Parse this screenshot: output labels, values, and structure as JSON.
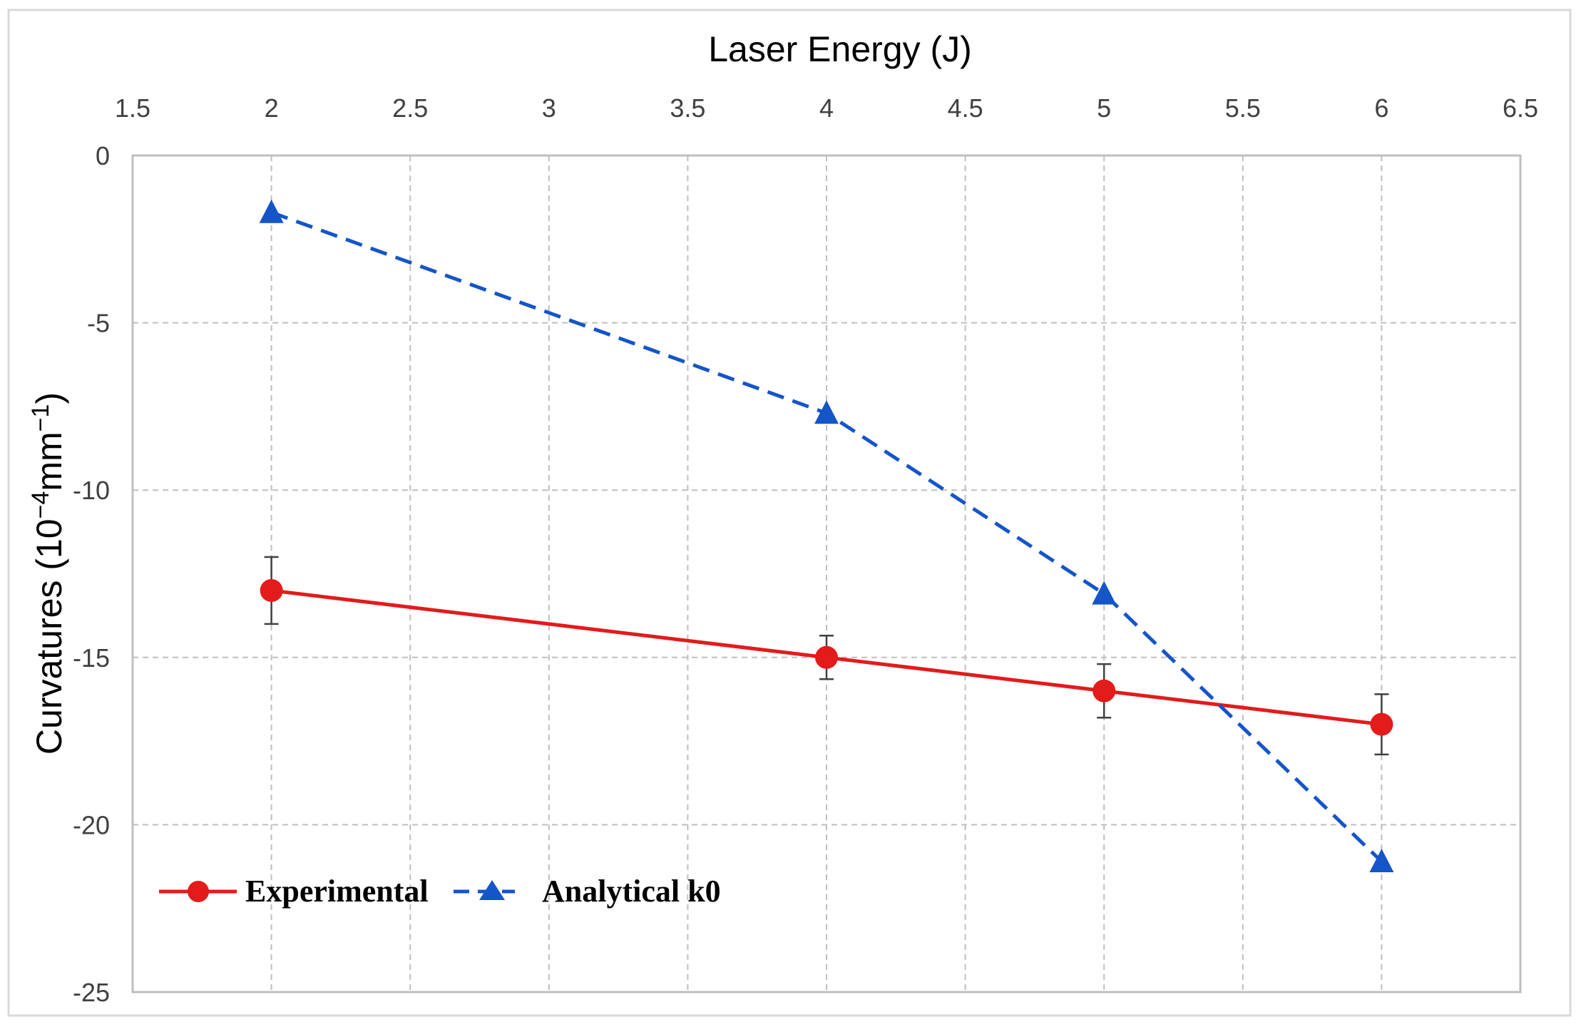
{
  "chart_data": {
    "type": "line",
    "title": "",
    "xlabel": "Laser Energy (J)",
    "ylabel_main": "Curvatures (10",
    "ylabel_exp": "−4",
    "ylabel_mid": "mm",
    "ylabel_exp2": "−1",
    "ylabel_end": ")",
    "xlim": [
      1.5,
      6.5
    ],
    "ylim": [
      -25,
      0
    ],
    "x_ticks": [
      1.5,
      2,
      2.5,
      3,
      3.5,
      4,
      4.5,
      5,
      5.5,
      6,
      6.5
    ],
    "x_tick_labels": [
      "1.5",
      "2",
      "2.5",
      "3",
      "3.5",
      "4",
      "4.5",
      "5",
      "5.5",
      "6",
      "6.5"
    ],
    "y_ticks": [
      0,
      -5,
      -10,
      -15,
      -20,
      -25
    ],
    "y_tick_labels": [
      "0",
      "-5",
      "-10",
      "-15",
      "-20",
      "-25"
    ],
    "x_axis_position": "top",
    "grid": true,
    "legend_position": "bottom-left",
    "series": [
      {
        "name": "Experimental",
        "color": "#E31B1B",
        "line_style": "solid",
        "marker": "circle",
        "x": [
          2,
          4,
          5,
          6
        ],
        "y": [
          -13,
          -15,
          -16,
          -17
        ],
        "error": [
          1.0,
          0.65,
          0.8,
          0.9
        ]
      },
      {
        "name": "Analytical k0",
        "color": "#1455C8",
        "line_style": "dashed",
        "marker": "triangle",
        "x": [
          2,
          4,
          5,
          6
        ],
        "y": [
          -1.7,
          -7.7,
          -13.1,
          -21.1
        ]
      }
    ]
  }
}
